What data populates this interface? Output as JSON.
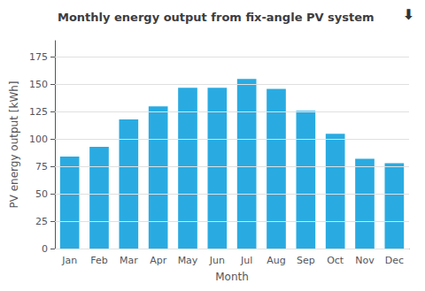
{
  "chart_data": {
    "type": "bar",
    "title": "Monthly energy output from fix-angle PV system",
    "xlabel": "Month",
    "ylabel": "PV energy output [kWh]",
    "categories": [
      "Jan",
      "Feb",
      "Mar",
      "Apr",
      "May",
      "Jun",
      "Jul",
      "Aug",
      "Sep",
      "Oct",
      "Nov",
      "Dec"
    ],
    "values": [
      84,
      93,
      118,
      130,
      147,
      147,
      155,
      146,
      126,
      105,
      82,
      78
    ],
    "color": "#29ABE2",
    "ylim": [
      0,
      190
    ],
    "yticks": [
      0,
      25,
      50,
      75,
      100,
      125,
      150,
      175
    ],
    "grid": true,
    "annotations": [
      "⬇"
    ]
  }
}
